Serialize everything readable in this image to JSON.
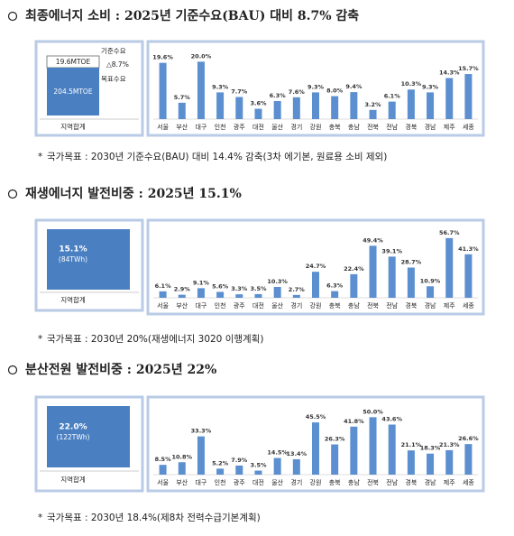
{
  "sections": [
    {
      "title": "최종에너지 소비 : 2025년 기준수요(BAU) 대비 8.7% 감축",
      "summary": {
        "reduction": "19.6MTOE",
        "baseline_label": "기준수요",
        "change": "△8.7%",
        "target_label": "목표수요",
        "target": "204.5MTOE",
        "region": "지역합계"
      },
      "chart_data": {
        "type": "bar",
        "color": "#5b8fd0",
        "categories": [
          "서울",
          "부산",
          "대구",
          "인천",
          "광주",
          "대전",
          "울산",
          "경기",
          "강원",
          "충북",
          "충남",
          "전북",
          "전남",
          "경북",
          "경남",
          "제주",
          "세종"
        ],
        "values": [
          19.6,
          5.7,
          20.0,
          9.3,
          7.7,
          3.6,
          6.3,
          7.6,
          9.3,
          8.0,
          9.4,
          3.2,
          6.1,
          10.3,
          9.3,
          14.3,
          15.7
        ],
        "value_labels": [
          "19.6%",
          "5.7%",
          "20.0%",
          "9.3%",
          "7.7%",
          "3.6%",
          "6.3%",
          "7.6%",
          "9.3%",
          "8.0%",
          "9.4%",
          "3.2%",
          "6.1%",
          "10.3%",
          "9.3%",
          "14.3%",
          "15.7%"
        ],
        "ylim": [
          0,
          22
        ]
      },
      "note": "국가목표 : 2030년 기준수요(BAU) 대비 14.4% 감축(3차 에기본, 원료용 소비 제외)"
    },
    {
      "title": "재생에너지 발전비중 : 2025년 15.1%",
      "summary": {
        "share": "15.1%",
        "amount": "(84TWh)",
        "region": "지역합계"
      },
      "chart_data": {
        "type": "bar",
        "color": "#5b8fd0",
        "categories": [
          "서울",
          "부산",
          "대구",
          "인천",
          "광주",
          "대전",
          "울산",
          "경기",
          "강원",
          "충북",
          "충남",
          "전북",
          "전남",
          "경북",
          "경남",
          "제주",
          "세종"
        ],
        "values": [
          6.1,
          2.9,
          9.1,
          5.6,
          3.3,
          3.5,
          10.3,
          2.7,
          24.7,
          6.3,
          22.4,
          49.4,
          39.1,
          28.7,
          10.9,
          56.7,
          41.3
        ],
        "value_labels": [
          "6.1%",
          "2.9%",
          "9.1%",
          "5.6%",
          "3.3%",
          "3.5%",
          "10.3%",
          "2.7%",
          "24.7%",
          "6.3%",
          "22.4%",
          "49.4%",
          "39.1%",
          "28.7%",
          "10.9%",
          "56.7%",
          "41.3%"
        ],
        "ylim": [
          0,
          60
        ]
      },
      "note": "국가목표 : 2030년 20%(재생에너지 3020 이행계획)"
    },
    {
      "title": "분산전원 발전비중 : 2025년 22%",
      "summary": {
        "share": "22.0%",
        "amount": "(122TWh)",
        "region": "지역합계"
      },
      "chart_data": {
        "type": "bar",
        "color": "#5b8fd0",
        "categories": [
          "서울",
          "부산",
          "대구",
          "인천",
          "광주",
          "대전",
          "울산",
          "경기",
          "강원",
          "충북",
          "충남",
          "전북",
          "전남",
          "경북",
          "경남",
          "제주",
          "세종"
        ],
        "values": [
          8.5,
          10.8,
          33.3,
          5.2,
          7.9,
          3.5,
          14.5,
          13.4,
          45.5,
          26.3,
          41.8,
          50.0,
          43.6,
          21.1,
          18.3,
          21.3,
          26.6
        ],
        "value_labels": [
          "8.5%",
          "10.8%",
          "33.3%",
          "5.2%",
          "7.9%",
          "3.5%",
          "14.5%",
          "13.4%",
          "45.5%",
          "26.3%",
          "41.8%",
          "50.0%",
          "43.6%",
          "21.1%",
          "18.3%",
          "21.3%",
          "26.6%"
        ],
        "ylim": [
          0,
          55
        ]
      },
      "note": "국가목표 : 2030년 18.4%(제8차 전력수급기본계획)"
    }
  ]
}
